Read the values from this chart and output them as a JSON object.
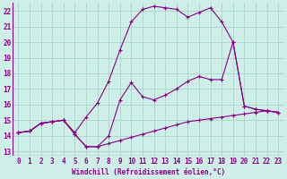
{
  "background_color": "#ceeee8",
  "grid_color": "#aad4cc",
  "line_color": "#880088",
  "xlabel": "Windchill (Refroidissement éolien,°C)",
  "xlim": [
    -0.5,
    23.5
  ],
  "ylim": [
    12.7,
    22.5
  ],
  "yticks": [
    13,
    14,
    15,
    16,
    17,
    18,
    19,
    20,
    21,
    22
  ],
  "xticks": [
    0,
    1,
    2,
    3,
    4,
    5,
    6,
    7,
    8,
    9,
    10,
    11,
    12,
    13,
    14,
    15,
    16,
    17,
    18,
    19,
    20,
    21,
    22,
    23
  ],
  "line_upper_x": [
    0,
    1,
    2,
    3,
    4,
    5,
    6,
    7,
    8,
    9,
    10,
    11,
    12,
    13,
    14,
    15,
    16,
    17,
    18,
    19,
    20,
    21,
    22,
    23
  ],
  "line_upper_y": [
    14.2,
    14.3,
    14.8,
    14.9,
    15.0,
    14.2,
    15.2,
    16.1,
    17.5,
    19.5,
    21.3,
    22.1,
    22.3,
    22.2,
    22.1,
    21.6,
    21.9,
    22.2,
    21.3,
    20.0,
    15.9,
    15.7,
    15.6,
    15.5
  ],
  "line_mid_x": [
    0,
    1,
    2,
    3,
    4,
    5,
    6,
    7,
    8,
    9,
    10,
    11,
    12,
    13,
    14,
    15,
    16,
    17,
    18,
    19,
    20,
    21,
    22,
    23
  ],
  "line_mid_y": [
    14.2,
    14.3,
    14.8,
    14.9,
    15.0,
    14.1,
    13.3,
    13.3,
    14.0,
    16.3,
    17.4,
    16.5,
    16.3,
    16.6,
    17.0,
    17.5,
    17.8,
    17.6,
    17.6,
    20.0,
    15.9,
    15.7,
    15.6,
    15.5
  ],
  "line_low_x": [
    0,
    1,
    2,
    3,
    4,
    5,
    6,
    7,
    8,
    9,
    10,
    11,
    12,
    13,
    14,
    15,
    16,
    17,
    18,
    19,
    20,
    21,
    22,
    23
  ],
  "line_low_y": [
    14.2,
    14.3,
    14.8,
    14.9,
    15.0,
    14.1,
    13.3,
    13.3,
    13.5,
    13.7,
    13.9,
    14.1,
    14.3,
    14.5,
    14.7,
    14.9,
    15.0,
    15.1,
    15.2,
    15.3,
    15.4,
    15.5,
    15.6,
    15.5
  ],
  "tick_fontsize": 5.5,
  "label_fontsize": 5.5
}
